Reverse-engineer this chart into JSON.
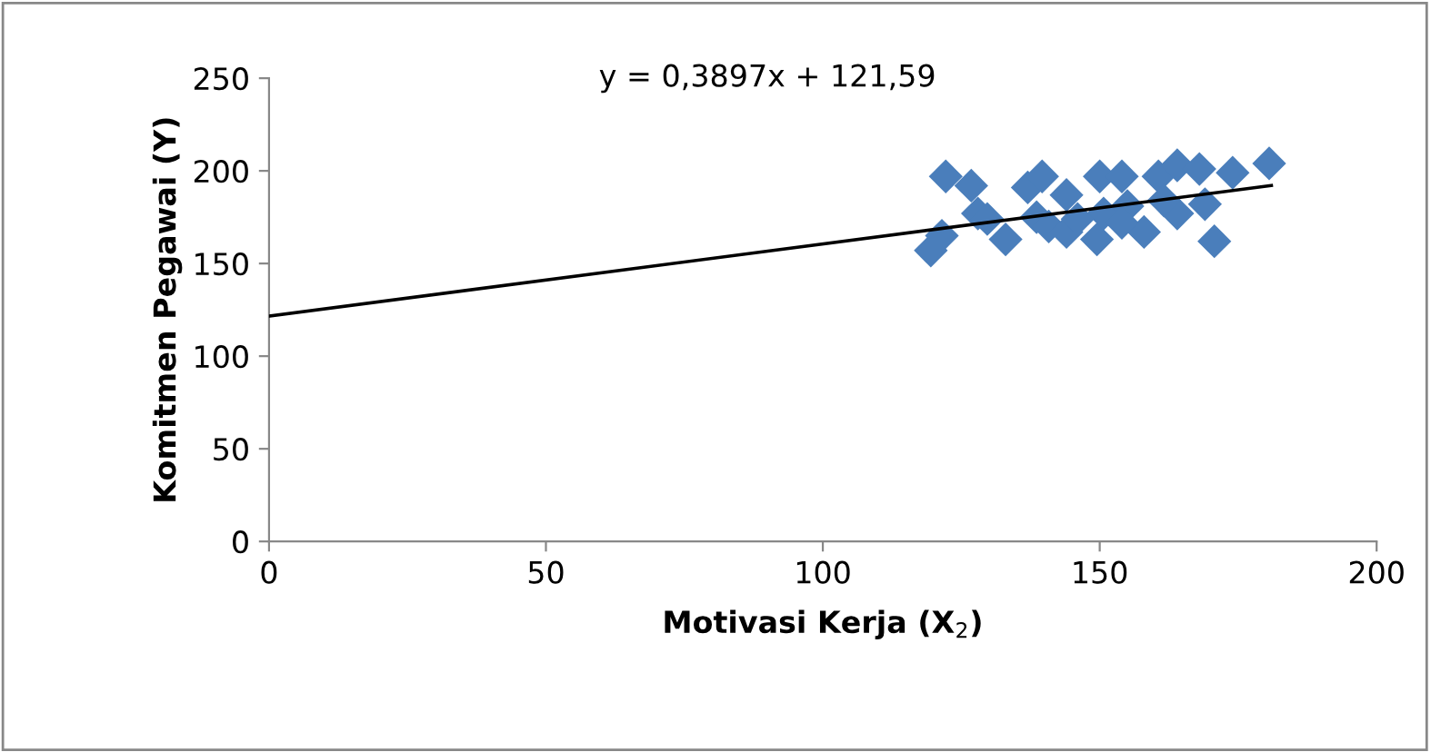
{
  "chart_data": {
    "type": "scatter",
    "xlabel": "Motivasi Kerja (X$_{2}$)",
    "ylabel": "Komitmen Pegawai (Y)",
    "annotations": [
      "y = 0,3897x + 121,59"
    ],
    "xlim": [
      0,
      200
    ],
    "ylim": [
      0,
      250
    ],
    "xticks": [
      0,
      50,
      100,
      150,
      200
    ],
    "yticks": [
      0,
      50,
      100,
      150,
      200,
      250
    ],
    "grid": false,
    "legend": false,
    "series": [
      {
        "marker": "diamond",
        "color": "#4a7ebb",
        "x": [
          119.5,
          121.5,
          122.2,
          126.8,
          128,
          129.7,
          133,
          137,
          139.6,
          138.6,
          140.8,
          144,
          144,
          150,
          149.5,
          150.7,
          154,
          155,
          158,
          160.6,
          164,
          164,
          168,
          169,
          170.7,
          174,
          180.6,
          146,
          154,
          161.6
        ],
        "values": [
          157,
          165,
          197,
          192,
          177,
          174,
          163,
          191,
          197,
          175,
          170,
          187,
          167,
          197,
          163,
          177,
          197,
          181,
          167,
          197,
          203,
          177,
          201,
          182,
          162,
          199,
          204,
          174,
          172,
          184
        ]
      },
      {
        "type": "line",
        "color": "#000000",
        "x": [
          0,
          181
        ],
        "values": [
          121.6,
          192.1
        ]
      }
    ]
  }
}
